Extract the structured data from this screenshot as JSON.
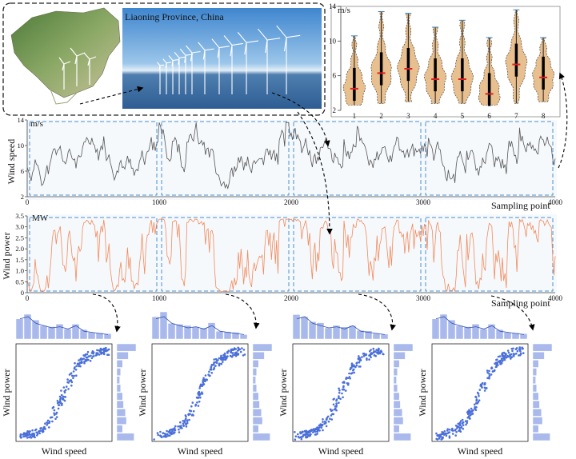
{
  "location_label": "Liaoning Province, China",
  "violin": {
    "unit": "m/s",
    "y_ticks": [
      2,
      6,
      10,
      14
    ],
    "categories": [
      "1",
      "2",
      "3",
      "4",
      "5",
      "6",
      "7",
      "8"
    ],
    "fill_color": "#e8bf8e",
    "median_color": "#e02020"
  },
  "speed_panel": {
    "ylabel": "Wind speed",
    "unit": "m/s",
    "y_ticks": [
      2,
      6,
      10,
      14
    ],
    "x_ticks": [
      0,
      1000,
      2000,
      3000,
      4000
    ],
    "xlabel": "Sampling point",
    "line_color": "#555555"
  },
  "power_panel": {
    "ylabel": "Wind power",
    "unit": "MW",
    "y_ticks": [
      "0",
      "0.5",
      "1.0",
      "1.5",
      "2.0",
      "2.5",
      "3.0",
      "3.5"
    ],
    "x_ticks": [
      0,
      1000,
      2000,
      3000,
      4000
    ],
    "xlabel": "Sampling point",
    "line_color": "#f08a5d"
  },
  "scatter_panels": {
    "xlabel": "Wind speed",
    "ylabel": "Wind power",
    "point_color": "#4a6fd8",
    "hist_color": "#a9b9ec"
  },
  "colors": {
    "segment_box": "#4a90d0",
    "panel_bg": "#f6f9fc"
  }
}
